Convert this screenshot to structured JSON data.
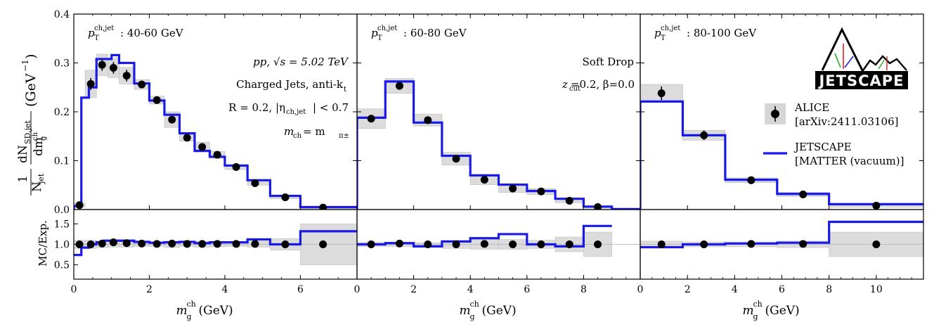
{
  "chart_data": [
    {
      "type": "step",
      "panel_label": "40-60 GeV",
      "panel_prefix": "p",
      "panel_sub": "T",
      "panel_sup": "ch,jet",
      "xlim": [
        0,
        7.5
      ],
      "ylim_top": [
        0,
        0.4
      ],
      "ylim_bottom": [
        0.15,
        1.85
      ],
      "xticks": [
        0,
        2,
        4,
        6
      ],
      "xtick_labels": [
        "0",
        "2",
        "4",
        "6"
      ],
      "yticks_top": [
        0,
        0.1,
        0.2,
        0.3,
        0.4
      ],
      "ytick_labels_top": [
        "0.0",
        "0.1",
        "0.2",
        "0.3",
        "0.4"
      ],
      "yticks_bottom": [
        0.5,
        1.0,
        1.5
      ],
      "ytick_labels_bottom": [
        "0.5",
        "1.0",
        "1.5"
      ],
      "ylabel_top": "1/N_jet dN_SD,jet/dm_g^ch (GeV^-1)",
      "ylabel_bottom": "MC/Exp.",
      "xlabel": "m_g^ch (GeV)",
      "annotations": [
        "pp, √s = 5.02 TeV",
        "Charged Jets, anti-k",
        "R = 0.2, |η",
        "| < 0.7",
        "m",
        " = m"
      ],
      "alice": {
        "x": [
          0.15,
          0.45,
          0.75,
          1.05,
          1.4,
          1.8,
          2.2,
          2.6,
          3.0,
          3.4,
          3.8,
          4.3,
          4.8,
          5.6,
          6.6
        ],
        "y": [
          0.009,
          0.257,
          0.296,
          0.29,
          0.274,
          0.256,
          0.224,
          0.184,
          0.147,
          0.128,
          0.112,
          0.087,
          0.054,
          0.025,
          0.004
        ],
        "yerr": [
          0.002,
          0.012,
          0.012,
          0.012,
          0.012,
          0.006,
          0.006,
          0.006,
          0.005,
          0.005,
          0.005,
          0.004,
          0.003,
          0.002,
          0.001
        ],
        "sys_low": [
          0.0,
          0.3,
          0.6,
          0.9,
          1.2,
          1.6,
          2.0,
          2.4,
          2.8,
          3.2,
          3.6,
          4.0,
          4.6,
          5.2,
          6.0
        ],
        "sys_high": [
          0.3,
          0.6,
          0.9,
          1.2,
          1.6,
          2.0,
          2.4,
          2.8,
          3.2,
          3.6,
          4.0,
          4.6,
          5.2,
          6.0,
          7.5
        ],
        "sys_err": [
          0.004,
          0.028,
          0.022,
          0.02,
          0.017,
          0.01,
          0.008,
          0.016,
          0.007,
          0.01,
          0.007,
          0.005,
          0.004,
          0.003,
          0.002
        ],
        "ratio": [
          1.0,
          1.0,
          1.02,
          1.05,
          1.03,
          1.02,
          1.01,
          1.02,
          1.01,
          1.01,
          1.01,
          1.01,
          1.01,
          1.0,
          1.0
        ],
        "ratio_sys": [
          0.1,
          0.1,
          0.08,
          0.07,
          0.07,
          0.05,
          0.05,
          0.08,
          0.05,
          0.07,
          0.06,
          0.05,
          0.07,
          0.14,
          0.5
        ]
      },
      "jetscape": {
        "edges": [
          0.0,
          0.2,
          0.4,
          0.6,
          0.8,
          1.0,
          1.2,
          1.6,
          2.0,
          2.4,
          2.8,
          3.2,
          3.6,
          4.0,
          4.6,
          5.2,
          6.0,
          7.5
        ],
        "values": [
          0.007,
          0.229,
          0.25,
          0.308,
          0.308,
          0.316,
          0.3,
          0.258,
          0.223,
          0.194,
          0.156,
          0.12,
          0.108,
          0.09,
          0.06,
          0.028,
          0.005
        ],
        "ratio_edges": [
          0.0,
          0.2,
          0.4,
          0.6,
          0.8,
          1.2,
          1.6,
          2.0,
          2.4,
          2.8,
          3.2,
          3.6,
          4.0,
          4.6,
          5.2,
          6.0,
          7.5
        ],
        "ratio_values": [
          0.74,
          0.92,
          1.0,
          1.05,
          1.09,
          1.09,
          1.06,
          1.04,
          1.05,
          1.06,
          1.03,
          1.05,
          1.05,
          1.12,
          1.0,
          1.32
        ]
      }
    },
    {
      "type": "step",
      "panel_label": "60-80 GeV",
      "panel_prefix": "p",
      "panel_sub": "T",
      "panel_sup": "ch,jet",
      "xlim": [
        0,
        10
      ],
      "ylim_top": [
        0,
        0.4
      ],
      "ylim_bottom": [
        0.15,
        1.85
      ],
      "xticks": [
        0,
        2,
        4,
        6,
        8
      ],
      "xtick_labels": [
        "0",
        "2",
        "4",
        "6",
        "8"
      ],
      "xlabel": "m_g^ch (GeV)",
      "annotations": [
        "Soft Drop",
        "z",
        "=0.2, β=0.0"
      ],
      "alice": {
        "x": [
          0.5,
          1.5,
          2.5,
          3.5,
          4.5,
          5.5,
          6.5,
          7.5,
          8.5
        ],
        "y": [
          0.186,
          0.253,
          0.183,
          0.104,
          0.061,
          0.043,
          0.037,
          0.018,
          0.005
        ],
        "yerr": [
          0.004,
          0.005,
          0.004,
          0.003,
          0.002,
          0.002,
          0.002,
          0.001,
          0.001
        ],
        "sys_low": [
          0,
          1,
          2,
          3,
          4,
          5,
          6,
          7,
          8
        ],
        "sys_high": [
          1,
          2,
          3,
          4,
          5,
          6,
          7,
          8,
          9
        ],
        "sys_err": [
          0.02,
          0.015,
          0.012,
          0.013,
          0.01,
          0.008,
          0.006,
          0.004,
          0.002
        ],
        "ratio": [
          1.0,
          1.02,
          1.0,
          1.0,
          1.01,
          1.0,
          1.0,
          1.0,
          1.0
        ],
        "ratio_sys": [
          0.05,
          0.05,
          0.04,
          0.1,
          0.12,
          0.12,
          0.1,
          0.18,
          0.3
        ]
      },
      "jetscape": {
        "edges": [
          0,
          1,
          2,
          3,
          4,
          5,
          6,
          7,
          8,
          9,
          10
        ],
        "values": [
          0.188,
          0.262,
          0.178,
          0.11,
          0.07,
          0.051,
          0.038,
          0.022,
          0.006,
          0.001
        ],
        "ratio_edges": [
          0,
          1,
          2,
          3,
          4,
          5,
          6,
          7,
          8,
          9
        ],
        "ratio_values": [
          1.0,
          1.03,
          0.95,
          1.07,
          1.15,
          1.25,
          1.0,
          0.95,
          1.45
        ]
      }
    },
    {
      "type": "step",
      "panel_label": "80-100 GeV",
      "panel_prefix": "p",
      "panel_sub": "T",
      "panel_sup": "ch,jet",
      "xlim": [
        0,
        12
      ],
      "ylim_top": [
        0,
        0.4
      ],
      "ylim_bottom": [
        0.15,
        1.85
      ],
      "xticks": [
        0,
        2,
        4,
        6,
        8,
        10
      ],
      "xtick_labels": [
        "0",
        "2",
        "4",
        "6",
        "8",
        "10"
      ],
      "xlabel": "m_g^ch (GeV)",
      "annotations": [],
      "alice": {
        "x": [
          0.9,
          2.7,
          4.7,
          6.9,
          10.0
        ],
        "y": [
          0.238,
          0.152,
          0.06,
          0.031,
          0.008
        ],
        "yerr": [
          0.014,
          0.01,
          0.004,
          0.003,
          0.002
        ],
        "sys_low": [
          0,
          1.8,
          3.6,
          5.8,
          8.0
        ],
        "sys_high": [
          1.8,
          3.6,
          5.8,
          8.0,
          12.0
        ],
        "sys_err": [
          0.018,
          0.01,
          0.005,
          0.004,
          0.003
        ],
        "ratio": [
          1.0,
          1.0,
          1.01,
          1.01,
          1.0
        ],
        "ratio_sys": [
          0.08,
          0.06,
          0.06,
          0.08,
          0.3
        ]
      },
      "jetscape": {
        "edges": [
          0,
          1.8,
          3.6,
          5.8,
          8.0,
          12.0
        ],
        "values": [
          0.221,
          0.152,
          0.061,
          0.032,
          0.011
        ],
        "ratio_edges": [
          0,
          1.8,
          3.6,
          5.8,
          8.0,
          12.0
        ],
        "ratio_values": [
          0.93,
          1.0,
          1.02,
          1.04,
          1.55
        ]
      }
    }
  ],
  "legend": {
    "alice_label": "ALICE",
    "alice_ref": "[arXiv:2411.03106]",
    "jetscape_label": "JETSCAPE",
    "jetscape_ref": "[MATTER (vacuum)]"
  },
  "logo": {
    "text": "JETSCAPE"
  },
  "colors": {
    "model": "#1a1ae6",
    "data": "#000000",
    "band": "#c8c8c8"
  },
  "axis_labels": {
    "y_top_frac_num": "1",
    "y_top_frac_den": "N",
    "y_top_den_sub": "jet",
    "y_top_dN": "dN",
    "y_top_dN_sub": "SD,jet",
    "y_top_dm": "dm",
    "y_top_dm_sup": "ch",
    "y_top_dm_sub": "g",
    "y_top_unit": "(GeV",
    "y_top_unit_sup": "−1",
    "y_top_unit_close": ")",
    "y_bottom": "MC/Exp.",
    "x_main": "m",
    "x_sup": "ch",
    "x_sub": "g",
    "x_unit": " (GeV)"
  },
  "annot_text": {
    "pp": "pp, √s = 5.02 TeV",
    "charged": "Charged Jets, anti-k",
    "charged_sub": "t",
    "R": "R = 0.2, |η",
    "R_sub": "ch,jet",
    "R_end": "| < 0.7",
    "mch": "m",
    "mch_sub": "ch",
    "mch_eq": " = m",
    "mch_sub2": "π±",
    "softdrop": "Soft Drop",
    "zcut": "z",
    "zcut_sub": "cut",
    "zcut_end": "=0.2, β=0.0"
  }
}
